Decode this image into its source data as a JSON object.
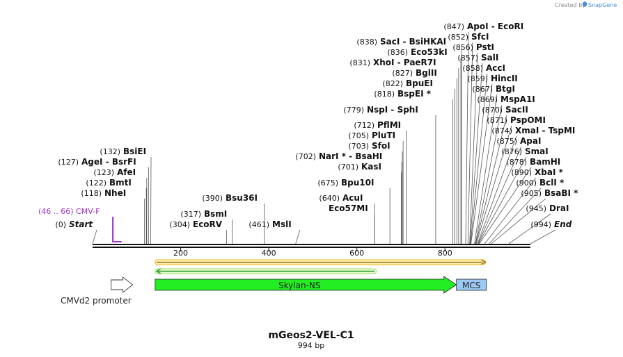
{
  "brand": {
    "prefix": "Created by",
    "name": "SnapGene"
  },
  "map": {
    "title": "mGeos2-VEL-C1",
    "length_label": "994 bp",
    "length": 994,
    "ticks": [
      "200",
      "400",
      "600",
      "800"
    ]
  },
  "sites": [
    {
      "name": "Start",
      "pos": 0,
      "label": "(0)",
      "italic": true
    },
    {
      "name": "NheI",
      "pos": 118,
      "label": "(118)"
    },
    {
      "name": "BmtI",
      "pos": 122,
      "label": "(122)"
    },
    {
      "name": "AfeI",
      "pos": 123,
      "label": "(123)"
    },
    {
      "name": "AgeI  -  BsrFI",
      "pos": 127,
      "label": "(127)"
    },
    {
      "name": "BsiEI",
      "pos": 132,
      "label": "(132)"
    },
    {
      "name": "EcoRV",
      "pos": 304,
      "label": "(304)"
    },
    {
      "name": "BsmI",
      "pos": 317,
      "label": "(317)"
    },
    {
      "name": "Bsu36I",
      "pos": 390,
      "label": "(390)"
    },
    {
      "name": "MslI",
      "pos": 461,
      "label": "(461)"
    },
    {
      "name": "Eco57MI",
      "pos": 640,
      "label": ""
    },
    {
      "name": "AcuI",
      "pos": 640,
      "label": "(640)"
    },
    {
      "name": "Bpu10I",
      "pos": 675,
      "label": "(675)"
    },
    {
      "name": "KasI",
      "pos": 701,
      "label": "(701)"
    },
    {
      "name": "NarI *  -  BsaHI",
      "pos": 702,
      "label": "(702)"
    },
    {
      "name": "SfoI",
      "pos": 703,
      "label": "(703)"
    },
    {
      "name": "PluTI",
      "pos": 705,
      "label": "(705)"
    },
    {
      "name": "PflMI",
      "pos": 712,
      "label": "(712)"
    },
    {
      "name": "NspI  -  SphI",
      "pos": 779,
      "label": "(779)"
    },
    {
      "name": "BspEI *",
      "pos": 818,
      "label": "(818)"
    },
    {
      "name": "BpuEI",
      "pos": 822,
      "label": "(822)"
    },
    {
      "name": "BglII",
      "pos": 827,
      "label": "(827)"
    },
    {
      "name": "XhoI  -  PaeR7I",
      "pos": 831,
      "label": "(831)"
    },
    {
      "name": "Eco53kI",
      "pos": 836,
      "label": "(836)"
    },
    {
      "name": "SacI  -  BsiHKAI",
      "pos": 838,
      "label": "(838)"
    },
    {
      "name": "ApoI  -  EcoRI",
      "pos": 847,
      "label": "(847)"
    },
    {
      "name": "SfcI",
      "pos": 852,
      "label": "(852)"
    },
    {
      "name": "PstI",
      "pos": 856,
      "label": "(856)"
    },
    {
      "name": "SalI",
      "pos": 857,
      "label": "(857)"
    },
    {
      "name": "AccI",
      "pos": 858,
      "label": "(858)"
    },
    {
      "name": "HincII",
      "pos": 859,
      "label": "(859)"
    },
    {
      "name": "BtgI",
      "pos": 867,
      "label": "(867)"
    },
    {
      "name": "MspA1I",
      "pos": 869,
      "label": "(869)"
    },
    {
      "name": "SacII",
      "pos": 870,
      "label": "(870)"
    },
    {
      "name": "PspOMI",
      "pos": 871,
      "label": "(871)"
    },
    {
      "name": "XmaI  -  TspMI",
      "pos": 874,
      "label": "(874)"
    },
    {
      "name": "ApaI",
      "pos": 875,
      "label": "(875)"
    },
    {
      "name": "SmaI",
      "pos": 876,
      "label": "(876)"
    },
    {
      "name": "BamHI",
      "pos": 878,
      "label": "(878)"
    },
    {
      "name": "XbaI *",
      "pos": 890,
      "label": "(890)"
    },
    {
      "name": "BclI *",
      "pos": 900,
      "label": "(900)"
    },
    {
      "name": "BsaBI *",
      "pos": 905,
      "label": "(905)"
    },
    {
      "name": "DraI",
      "pos": 945,
      "label": "(945)"
    },
    {
      "name": "End",
      "pos": 994,
      "label": "(994)",
      "italic": true
    }
  ],
  "primer": {
    "label": "(46 .. 66)  CMV-F",
    "start": 46,
    "end": 66,
    "color": "#9b30c8"
  },
  "features": [
    {
      "name": "",
      "type": "orange-bar",
      "start": 142,
      "end": 892,
      "color": "#f0b020"
    },
    {
      "name": "",
      "type": "green-arrow-left",
      "start": 142,
      "end": 644,
      "color": "#2a9a2a"
    },
    {
      "name": "Skylan-NS",
      "type": "arrow-right",
      "start": 142,
      "end": 826,
      "color": "#22ee22"
    },
    {
      "name": "MCS",
      "type": "box",
      "start": 826,
      "end": 894,
      "color": "#9cc9f5"
    },
    {
      "name": "CMVd2 promoter",
      "type": "open-arrow",
      "start": 42,
      "end": 91,
      "color": "#ffffff"
    }
  ]
}
